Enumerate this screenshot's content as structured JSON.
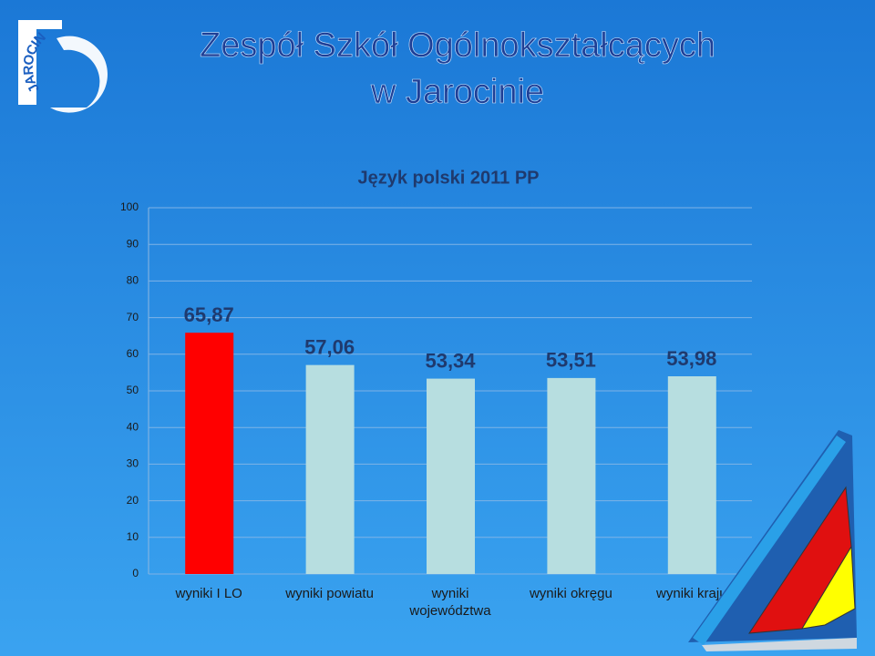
{
  "slide_title": [
    "Zespół Szkół Ogólnokształcących",
    "w Jarocinie"
  ],
  "logo_text": "JAROCIN",
  "chart_data": {
    "type": "bar",
    "title": "Język polski 2011 PP",
    "categories": [
      "wyniki I LO",
      "wyniki powiatu",
      "wyniki województwa",
      "wyniki okręgu",
      "wyniki kraju"
    ],
    "values": [
      65.87,
      57.06,
      53.34,
      53.51,
      53.98
    ],
    "value_labels": [
      "65,87",
      "57,06",
      "53,34",
      "53,51",
      "53,98"
    ],
    "colors": [
      "#ff0000",
      "#b7dee0",
      "#b7dee0",
      "#b7dee0",
      "#b7dee0"
    ],
    "ylim": [
      0,
      100
    ],
    "yticks": [
      0,
      10,
      20,
      30,
      40,
      50,
      60,
      70,
      80,
      90,
      100
    ],
    "grid": true
  }
}
